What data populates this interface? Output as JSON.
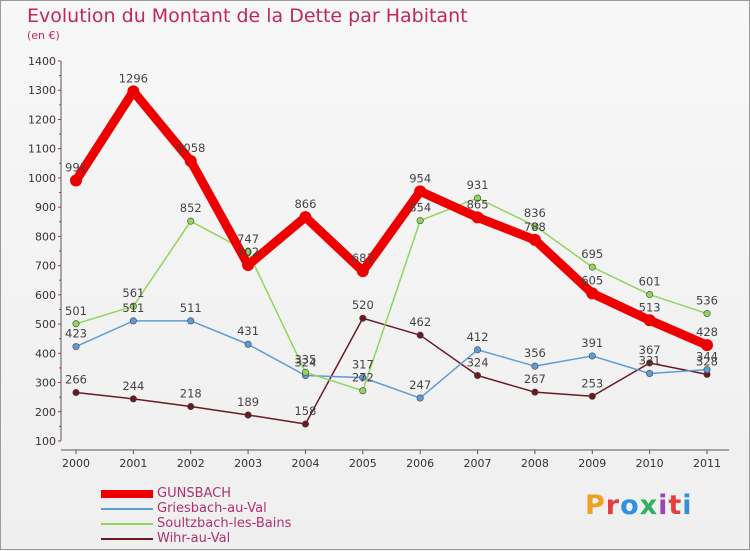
{
  "header": {
    "title": "Evolution du Montant de la Dette par Habitant",
    "unit": "(en €)"
  },
  "logo": {
    "text": "Proxiti"
  },
  "chart_data": {
    "type": "line",
    "x": [
      "2000",
      "2001",
      "2002",
      "2003",
      "2004",
      "2005",
      "2006",
      "2007",
      "2008",
      "2009",
      "2010",
      "2011"
    ],
    "ylim": [
      100,
      1400
    ],
    "yticks": [
      100,
      200,
      300,
      400,
      500,
      600,
      700,
      800,
      900,
      1000,
      1100,
      1200,
      1300,
      1400
    ],
    "grid": false,
    "legend": "bottom-left",
    "series": [
      {
        "name": "GUNSBACH",
        "color": "#ee0000",
        "values": [
          991,
          1296,
          1058,
          702,
          866,
          681,
          954,
          865,
          788,
          605,
          513,
          428
        ]
      },
      {
        "name": "Griesbach-au-Val",
        "color": "#5f9bd5",
        "values": [
          423,
          511,
          511,
          431,
          324,
          317,
          247,
          412,
          356,
          391,
          331,
          344
        ]
      },
      {
        "name": "Soultzbach-les-Bains",
        "color": "#8fd65a",
        "values": [
          501,
          561,
          852,
          747,
          335,
          272,
          854,
          931,
          836,
          695,
          601,
          536
        ]
      },
      {
        "name": "Wihr-au-Val",
        "color": "#6b1a24",
        "values": [
          266,
          244,
          218,
          189,
          158,
          520,
          462,
          324,
          267,
          253,
          367,
          328
        ]
      }
    ]
  }
}
